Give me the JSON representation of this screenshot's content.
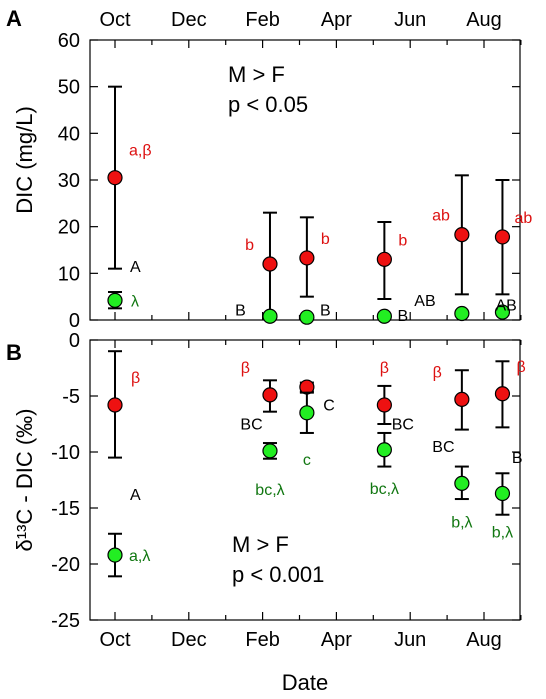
{
  "colors": {
    "male": "#ee1111",
    "female": "#22ee22",
    "male_text": "#dd1111",
    "female_text": "#117711",
    "black": "#000000"
  },
  "chart_data": [
    {
      "panel_label": "A",
      "type": "scatter",
      "ylabel": "DIC (mg/L)",
      "xlabel": "",
      "ylim": [
        0,
        60
      ],
      "yticks": [
        "0",
        "10",
        "20",
        "30",
        "40",
        "50",
        "60"
      ],
      "xticks_top": [
        "Oct",
        "Dec",
        "Feb",
        "Apr",
        "Jun",
        "Aug"
      ],
      "annotation": [
        "M > F",
        "p < 0.05"
      ],
      "series": [
        {
          "color": "male",
          "points": [
            {
              "month": 0,
              "y": 30.5,
              "lo": 11,
              "hi": 50,
              "label": "a,β"
            },
            {
              "month": 4.2,
              "y": 12,
              "lo": 1,
              "hi": 23,
              "label": "b"
            },
            {
              "month": 5.2,
              "y": 13.3,
              "lo": 5,
              "hi": 22,
              "label": "b"
            },
            {
              "month": 7.3,
              "y": 13,
              "lo": 4.5,
              "hi": 21,
              "label": "b"
            },
            {
              "month": 9.4,
              "y": 18.3,
              "lo": 5.5,
              "hi": 31,
              "label": "ab"
            },
            {
              "month": 10.5,
              "y": 17.8,
              "lo": 5.5,
              "hi": 30,
              "label": "ab"
            }
          ]
        },
        {
          "color": "female",
          "points": [
            {
              "month": 0,
              "y": 4.2,
              "lo": 2.5,
              "hi": 6,
              "label": "λ"
            },
            {
              "month": 4.2,
              "y": 0.8,
              "lo": 0.5,
              "hi": 1.2,
              "label": ""
            },
            {
              "month": 5.2,
              "y": 0.6,
              "lo": 0.4,
              "hi": 0.9,
              "label": ""
            },
            {
              "month": 7.3,
              "y": 0.8,
              "lo": 0.5,
              "hi": 1.1,
              "label": ""
            },
            {
              "month": 9.4,
              "y": 1.4,
              "lo": 1.0,
              "hi": 1.8,
              "label": ""
            },
            {
              "month": 10.5,
              "y": 1.7,
              "lo": 1.2,
              "hi": 2.2,
              "label": ""
            }
          ]
        }
      ],
      "letters": [
        {
          "text": "A",
          "month": 0.55,
          "y": 10.3
        },
        {
          "text": "B",
          "month": 3.4,
          "y": 1.0
        },
        {
          "text": "B",
          "month": 5.7,
          "y": 1.0
        },
        {
          "text": "B",
          "month": 7.8,
          "y": -0.2
        },
        {
          "text": "AB",
          "month": 8.4,
          "y": 3.0
        },
        {
          "text": "AB",
          "month": 10.6,
          "y": 2.0
        }
      ]
    },
    {
      "panel_label": "B",
      "type": "scatter",
      "ylabel": "δ¹³C - DIC (‰)",
      "xlabel": "Date",
      "ylim": [
        -25,
        0
      ],
      "yticks": [
        "0",
        "-5",
        "-10",
        "-15",
        "-20",
        "-25"
      ],
      "xticks_bottom": [
        "Oct",
        "Dec",
        "Feb",
        "Apr",
        "Jun",
        "Aug"
      ],
      "annotation": [
        "M > F",
        "p < 0.001"
      ],
      "series": [
        {
          "color": "male",
          "points": [
            {
              "month": 0,
              "y": -5.8,
              "lo": -10.5,
              "hi": -1.0,
              "label": "β"
            },
            {
              "month": 4.2,
              "y": -4.9,
              "lo": -6.4,
              "hi": -3.6,
              "label": "β"
            },
            {
              "month": 5.2,
              "y": -4.2,
              "lo": -4.6,
              "hi": -3.8,
              "label": ""
            },
            {
              "month": 7.3,
              "y": -5.8,
              "lo": -7.5,
              "hi": -4.1,
              "label": "β"
            },
            {
              "month": 9.4,
              "y": -5.3,
              "lo": -8.0,
              "hi": -2.7,
              "label": "β"
            },
            {
              "month": 10.5,
              "y": -4.8,
              "lo": -7.8,
              "hi": -1.9,
              "label": "β"
            }
          ]
        },
        {
          "color": "female",
          "points": [
            {
              "month": 0,
              "y": -19.2,
              "lo": -21.1,
              "hi": -17.3,
              "label": "a,λ"
            },
            {
              "month": 4.2,
              "y": -9.9,
              "lo": -10.6,
              "hi": -9.2,
              "label": "bc,λ"
            },
            {
              "month": 5.2,
              "y": -6.5,
              "lo": -8.3,
              "hi": -4.7,
              "label": "c"
            },
            {
              "month": 7.3,
              "y": -9.8,
              "lo": -11.3,
              "hi": -8.3,
              "label": "bc,λ"
            },
            {
              "month": 9.4,
              "y": -12.8,
              "lo": -14.2,
              "hi": -11.3,
              "label": "b,λ"
            },
            {
              "month": 10.5,
              "y": -13.7,
              "lo": -15.6,
              "hi": -11.9,
              "label": "b,λ"
            }
          ]
        }
      ],
      "letters": [
        {
          "text": "A",
          "month": 0.55,
          "y": -14.3
        },
        {
          "text": "BC",
          "month": 3.7,
          "y": -8.0
        },
        {
          "text": "C",
          "month": 5.8,
          "y": -6.3
        },
        {
          "text": "BC",
          "month": 7.8,
          "y": -8.0
        },
        {
          "text": "BC",
          "month": 8.9,
          "y": -10.0
        },
        {
          "text": "B",
          "month": 10.9,
          "y": -11.0
        }
      ]
    }
  ]
}
